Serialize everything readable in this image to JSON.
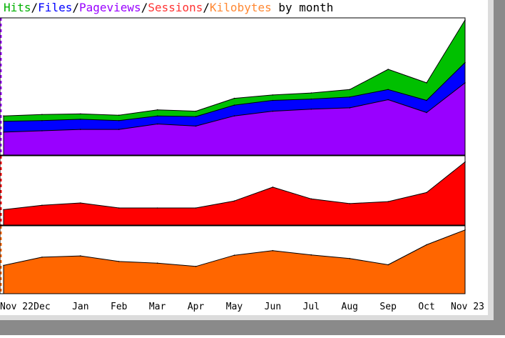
{
  "chart_data": {
    "type": "area",
    "title": {
      "parts": [
        {
          "text": "Hits",
          "color": "#00b000"
        },
        {
          "text": "/",
          "color": "#000000"
        },
        {
          "text": "Files",
          "color": "#0000ff"
        },
        {
          "text": "/",
          "color": "#000000"
        },
        {
          "text": "Pageviews",
          "color": "#9900ff"
        },
        {
          "text": "/",
          "color": "#000000"
        },
        {
          "text": "Sessions",
          "color": "#ff3333"
        },
        {
          "text": "/",
          "color": "#000000"
        },
        {
          "text": "Kilobytes",
          "color": "#ff8833"
        },
        {
          "text": " by month",
          "color": "#000000"
        }
      ]
    },
    "categories": [
      "Nov 22",
      "Dec",
      "Jan",
      "Feb",
      "Mar",
      "Apr",
      "May",
      "Jun",
      "Jul",
      "Aug",
      "Sep",
      "Oct",
      "Nov 23"
    ],
    "panels": [
      {
        "name": "hits-files-pageviews",
        "ylim": [
          0,
          1000
        ],
        "series": [
          {
            "name": "Hits",
            "color": "#00c000",
            "values": [
              290,
              300,
              305,
              295,
              335,
              325,
              420,
              445,
              460,
              485,
              635,
              535,
              1000
            ]
          },
          {
            "name": "Files",
            "color": "#0000ff",
            "values": [
              250,
              255,
              265,
              255,
              290,
              285,
              370,
              405,
              415,
              430,
              485,
              405,
              685
            ]
          },
          {
            "name": "Pageviews",
            "color": "#9900ff",
            "values": [
              170,
              180,
              190,
              190,
              230,
              215,
              290,
              325,
              340,
              350,
              410,
              315,
              535
            ]
          }
        ]
      },
      {
        "name": "sessions",
        "ylim": [
          0,
          1000
        ],
        "series": [
          {
            "name": "Sessions",
            "color": "#ff0000",
            "values": [
              230,
              295,
              330,
              255,
              255,
              255,
              360,
              565,
              390,
              320,
              350,
              485,
              940
            ]
          }
        ]
      },
      {
        "name": "kilobytes",
        "ylim": [
          0,
          1000
        ],
        "series": [
          {
            "name": "Kilobytes",
            "color": "#ff6600",
            "values": [
              430,
              555,
              575,
              490,
              465,
              415,
              585,
              655,
              590,
              535,
              440,
              745,
              970
            ]
          }
        ]
      }
    ]
  }
}
